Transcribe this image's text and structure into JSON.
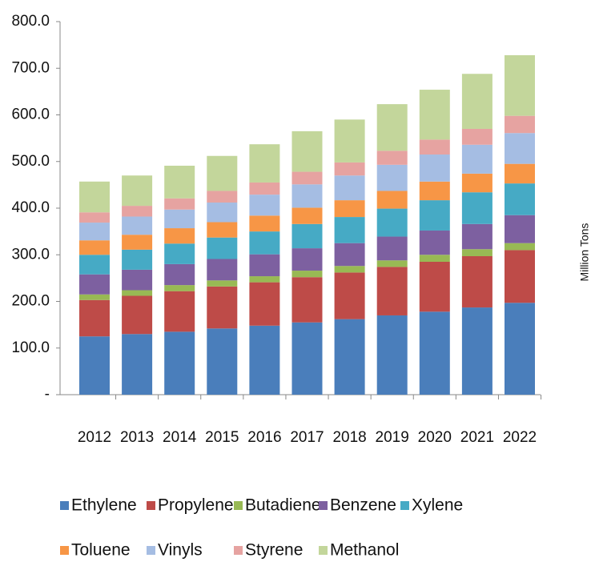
{
  "chart_data": {
    "type": "stacked_bar",
    "y_label": "Million Tons",
    "categories": [
      "2012",
      "2013",
      "2014",
      "2015",
      "2016",
      "2017",
      "2018",
      "2019",
      "2020",
      "2021",
      "2022"
    ],
    "series": [
      {
        "name": "Ethylene",
        "color": "#4a7ebb",
        "values": [
          125,
          130,
          135,
          142,
          148,
          155,
          162,
          170,
          178,
          187,
          197
        ]
      },
      {
        "name": "Propylene",
        "color": "#be4b48",
        "values": [
          78,
          82,
          87,
          90,
          93,
          97,
          100,
          104,
          107,
          110,
          113
        ]
      },
      {
        "name": "Butadiene",
        "color": "#98b954",
        "values": [
          12,
          12,
          13,
          13,
          13,
          14,
          14,
          14,
          15,
          15,
          15
        ]
      },
      {
        "name": "Benzene",
        "color": "#7d60a0",
        "values": [
          43,
          44,
          45,
          46,
          47,
          48,
          49,
          51,
          52,
          54,
          60
        ]
      },
      {
        "name": "Xylene",
        "color": "#46aac5",
        "values": [
          42,
          43,
          44,
          46,
          49,
          52,
          56,
          60,
          65,
          68,
          68
        ]
      },
      {
        "name": "Toluene",
        "color": "#f79646",
        "values": [
          31,
          32,
          33,
          33,
          34,
          35,
          36,
          38,
          40,
          40,
          42
        ]
      },
      {
        "name": "Vinyls",
        "color": "#a5bde3",
        "values": [
          38,
          39,
          40,
          42,
          45,
          50,
          53,
          56,
          58,
          62,
          66
        ]
      },
      {
        "name": "Styrene",
        "color": "#e6a3a1",
        "values": [
          22,
          23,
          24,
          25,
          26,
          27,
          28,
          30,
          32,
          34,
          37
        ]
      },
      {
        "name": "Methanol",
        "color": "#c3d69b",
        "values": [
          66,
          65,
          70,
          75,
          82,
          87,
          92,
          100,
          107,
          118,
          130
        ]
      }
    ],
    "ylim": [
      0,
      800
    ],
    "yticks": [
      {
        "value": 0,
        "label": "-"
      },
      {
        "value": 100,
        "label": "100.0"
      },
      {
        "value": 200,
        "label": "200.0"
      },
      {
        "value": 300,
        "label": "300.0"
      },
      {
        "value": 400,
        "label": "400.0"
      },
      {
        "value": 500,
        "label": "500.0"
      },
      {
        "value": 600,
        "label": "600.0"
      },
      {
        "value": 700,
        "label": "700.0"
      },
      {
        "value": 800,
        "label": "800.0"
      }
    ],
    "legend": "bottom"
  }
}
